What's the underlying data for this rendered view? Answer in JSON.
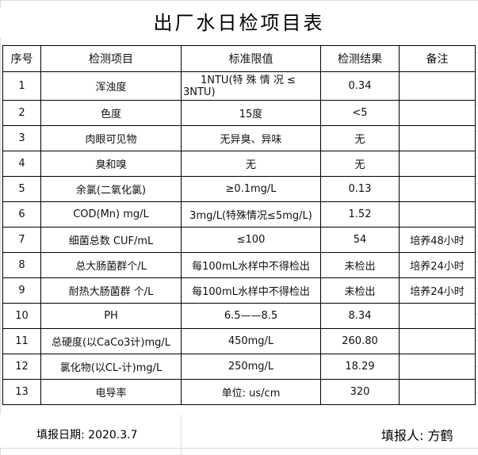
{
  "title": "出厂水日检项目表",
  "headers": [
    "序号",
    "检测项目",
    "标准限值",
    "检测结果",
    "备注"
  ],
  "rows": [
    [
      "1",
      "浑浊度",
      "1NTU(特 殊 情 况 ≤ 3NTU)",
      "0.34",
      ""
    ],
    [
      "2",
      "色度",
      "15度",
      "<5",
      ""
    ],
    [
      "3",
      "肉眼可见物",
      "无异臭、异味",
      "无",
      ""
    ],
    [
      "4",
      "臭和嗅",
      "无",
      "无",
      ""
    ],
    [
      "5",
      "余氯(二氧化氯)",
      "≥0.1mg/L",
      "0.13",
      ""
    ],
    [
      "6",
      "COD(Mn)  mg/L",
      "3mg/L(特殊情况≤5mg/L)",
      "1.52",
      ""
    ],
    [
      "7",
      "细菌总数 CUF/mL",
      "≤100",
      "54",
      "培养48小时"
    ],
    [
      "8",
      "总大肠菌群个/L",
      "每100mL水样中不得检出",
      "未检出",
      "培养24小时"
    ],
    [
      "9",
      "耐热大肠菌群 个/L",
      "每100mL水样中不得检出",
      "未检出",
      "培养24小时"
    ],
    [
      "10",
      "PH",
      "6.5——8.5",
      "8.34",
      ""
    ],
    [
      "11",
      "总硬度(以CaCo3计)mg/L",
      "450mg/L",
      "260.80",
      ""
    ],
    [
      "12",
      "氯化物(以CL-计)mg/L",
      "250mg/L",
      "18.29",
      ""
    ],
    [
      "13",
      "电导率",
      "单位: us/cm",
      "320",
      ""
    ]
  ],
  "footer": {
    "date": "填报日期: 2020.3.7",
    "person": "填报人: 方鹤"
  }
}
